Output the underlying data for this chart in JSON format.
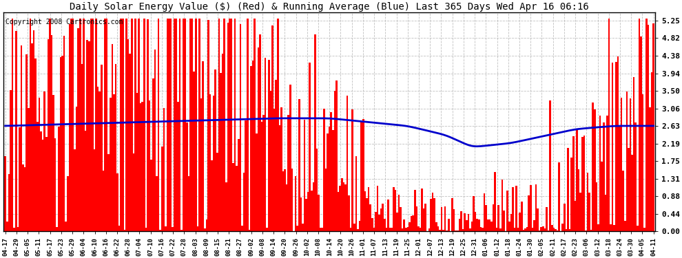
{
  "title": "Daily Solar Energy Value ($) (Red) & Running Average (Blue) Last 365 Days Wed Apr 16 06:16",
  "copyright": "Copyright 2008 Cartronics.com",
  "bar_color": "#ff0000",
  "avg_color": "#0000cc",
  "bg_color": "#ffffff",
  "plot_bg_color": "#ffffff",
  "grid_color": "#b0b0b0",
  "ylim": [
    0,
    5.46
  ],
  "yticks": [
    0.0,
    0.44,
    0.88,
    1.31,
    1.75,
    2.19,
    2.63,
    3.06,
    3.5,
    3.94,
    4.38,
    4.82,
    5.25
  ],
  "xtick_labels": [
    "04-17",
    "04-29",
    "05-05",
    "05-11",
    "05-17",
    "05-23",
    "05-29",
    "06-04",
    "06-10",
    "06-16",
    "06-22",
    "06-28",
    "07-04",
    "07-10",
    "07-16",
    "07-22",
    "07-28",
    "08-03",
    "08-09",
    "08-15",
    "08-21",
    "08-27",
    "09-02",
    "09-08",
    "09-14",
    "09-20",
    "09-26",
    "10-02",
    "10-08",
    "10-14",
    "10-20",
    "10-26",
    "11-01",
    "11-07",
    "11-13",
    "11-19",
    "11-25",
    "12-01",
    "12-07",
    "12-13",
    "12-19",
    "12-25",
    "12-31",
    "01-06",
    "01-12",
    "01-18",
    "01-24",
    "01-30",
    "02-05",
    "02-11",
    "02-17",
    "02-23",
    "03-06",
    "03-12",
    "03-18",
    "03-24",
    "03-30",
    "04-05",
    "04-11"
  ],
  "title_fontsize": 10,
  "copyright_fontsize": 7,
  "avg_curve": [
    2.63,
    2.64,
    2.65,
    2.66,
    2.67,
    2.67,
    2.68,
    2.69,
    2.7,
    2.7,
    2.71,
    2.71,
    2.72,
    2.72,
    2.73,
    2.73,
    2.74,
    2.74,
    2.75,
    2.75,
    2.76,
    2.76,
    2.76,
    2.77,
    2.77,
    2.77,
    2.78,
    2.78,
    2.78,
    2.78,
    2.79,
    2.79,
    2.79,
    2.79,
    2.79,
    2.8,
    2.8,
    2.8,
    2.8,
    2.8,
    2.8,
    2.8,
    2.8,
    2.8,
    2.8,
    2.8,
    2.8,
    2.8,
    2.8,
    2.8,
    2.8,
    2.8,
    2.8,
    2.8,
    2.8,
    2.8,
    2.8,
    2.8,
    2.8,
    2.8,
    2.8,
    2.8,
    2.8,
    2.8,
    2.8,
    2.8,
    2.8,
    2.8,
    2.8,
    2.8,
    2.8,
    2.8,
    2.8,
    2.8,
    2.8,
    2.8,
    2.8,
    2.8,
    2.8,
    2.8,
    2.8,
    2.8,
    2.8,
    2.8,
    2.8,
    2.8,
    2.8,
    2.8,
    2.8,
    2.8,
    2.8,
    2.8,
    2.8,
    2.8,
    2.8,
    2.8,
    2.8,
    2.8,
    2.8,
    2.8,
    2.8,
    2.8,
    2.8,
    2.8,
    2.8,
    2.8,
    2.8,
    2.8,
    2.8,
    2.8,
    2.8,
    2.8,
    2.8,
    2.8,
    2.8,
    2.8,
    2.8,
    2.8,
    2.8,
    2.8,
    2.8,
    2.8,
    2.8,
    2.8,
    2.8,
    2.8,
    2.8,
    2.8,
    2.8,
    2.8,
    2.8,
    2.8,
    2.8,
    2.8,
    2.8,
    2.8,
    2.8,
    2.8,
    2.8,
    2.8,
    2.8,
    2.8,
    2.8,
    2.8,
    2.8,
    2.8,
    2.8,
    2.8,
    2.8,
    2.8,
    2.8,
    2.8,
    2.79,
    2.78,
    2.78,
    2.77,
    2.76,
    2.76,
    2.75,
    2.74,
    2.73,
    2.72,
    2.71,
    2.7,
    2.69,
    2.68,
    2.67,
    2.66,
    2.65,
    2.64,
    2.63,
    2.62,
    2.61,
    2.6,
    2.59,
    2.58,
    2.57,
    2.56,
    2.55,
    2.54,
    2.53,
    2.52,
    2.51,
    2.5,
    2.49,
    2.48,
    2.47,
    2.46,
    2.45,
    2.44,
    2.43,
    2.42,
    2.41,
    2.4,
    2.39,
    2.38,
    2.37,
    2.36,
    2.35,
    2.34,
    2.33,
    2.32,
    2.31,
    2.3,
    2.29,
    2.28,
    2.27,
    2.26,
    2.25,
    2.24,
    2.23,
    2.22,
    2.21,
    2.2,
    2.19,
    2.18,
    2.17,
    2.16,
    2.15,
    2.14,
    2.13,
    2.12,
    2.11,
    2.1,
    2.4,
    2.41,
    2.42,
    2.43,
    2.44,
    2.45,
    2.46,
    2.47,
    2.48,
    2.49,
    2.5,
    2.51,
    2.52,
    2.53,
    2.54,
    2.55,
    2.56,
    2.57,
    2.58,
    2.59,
    2.6,
    2.6,
    2.61,
    2.61,
    2.62,
    2.62,
    2.62,
    2.62,
    2.63,
    2.63,
    2.63,
    2.63,
    2.63,
    2.63,
    2.63,
    2.63,
    2.63,
    2.63,
    2.63,
    2.63,
    2.63,
    2.63,
    2.63,
    2.63,
    2.63,
    2.63,
    2.63,
    2.63,
    2.63,
    2.63,
    2.63,
    2.63,
    2.63,
    2.63,
    2.63,
    2.63,
    2.63,
    2.63,
    2.63,
    2.63,
    2.63,
    2.63,
    2.63,
    2.63,
    2.63,
    2.63,
    2.63,
    2.63,
    2.63,
    2.63,
    2.63,
    2.63,
    2.63,
    2.63,
    2.63,
    2.63,
    2.63,
    2.63,
    2.63,
    2.63,
    2.63,
    2.63,
    2.63,
    2.63,
    2.63,
    2.63,
    2.63,
    2.63,
    2.63,
    2.63,
    2.63,
    2.63,
    2.63,
    2.63,
    2.63,
    2.63,
    2.63,
    2.63,
    2.63,
    2.63,
    2.63,
    2.63,
    2.63,
    2.63,
    2.63,
    2.63,
    2.63,
    2.63,
    2.63,
    2.63,
    2.63,
    2.63,
    2.63,
    2.63,
    2.63,
    2.63,
    2.63,
    2.63,
    2.63,
    2.63,
    2.63,
    2.63,
    2.63,
    2.63,
    2.63,
    2.63,
    2.63,
    2.63,
    2.63,
    2.63,
    2.63,
    2.63,
    2.63,
    2.63,
    2.63,
    2.63,
    2.63,
    2.63,
    2.63,
    2.63,
    2.63
  ]
}
